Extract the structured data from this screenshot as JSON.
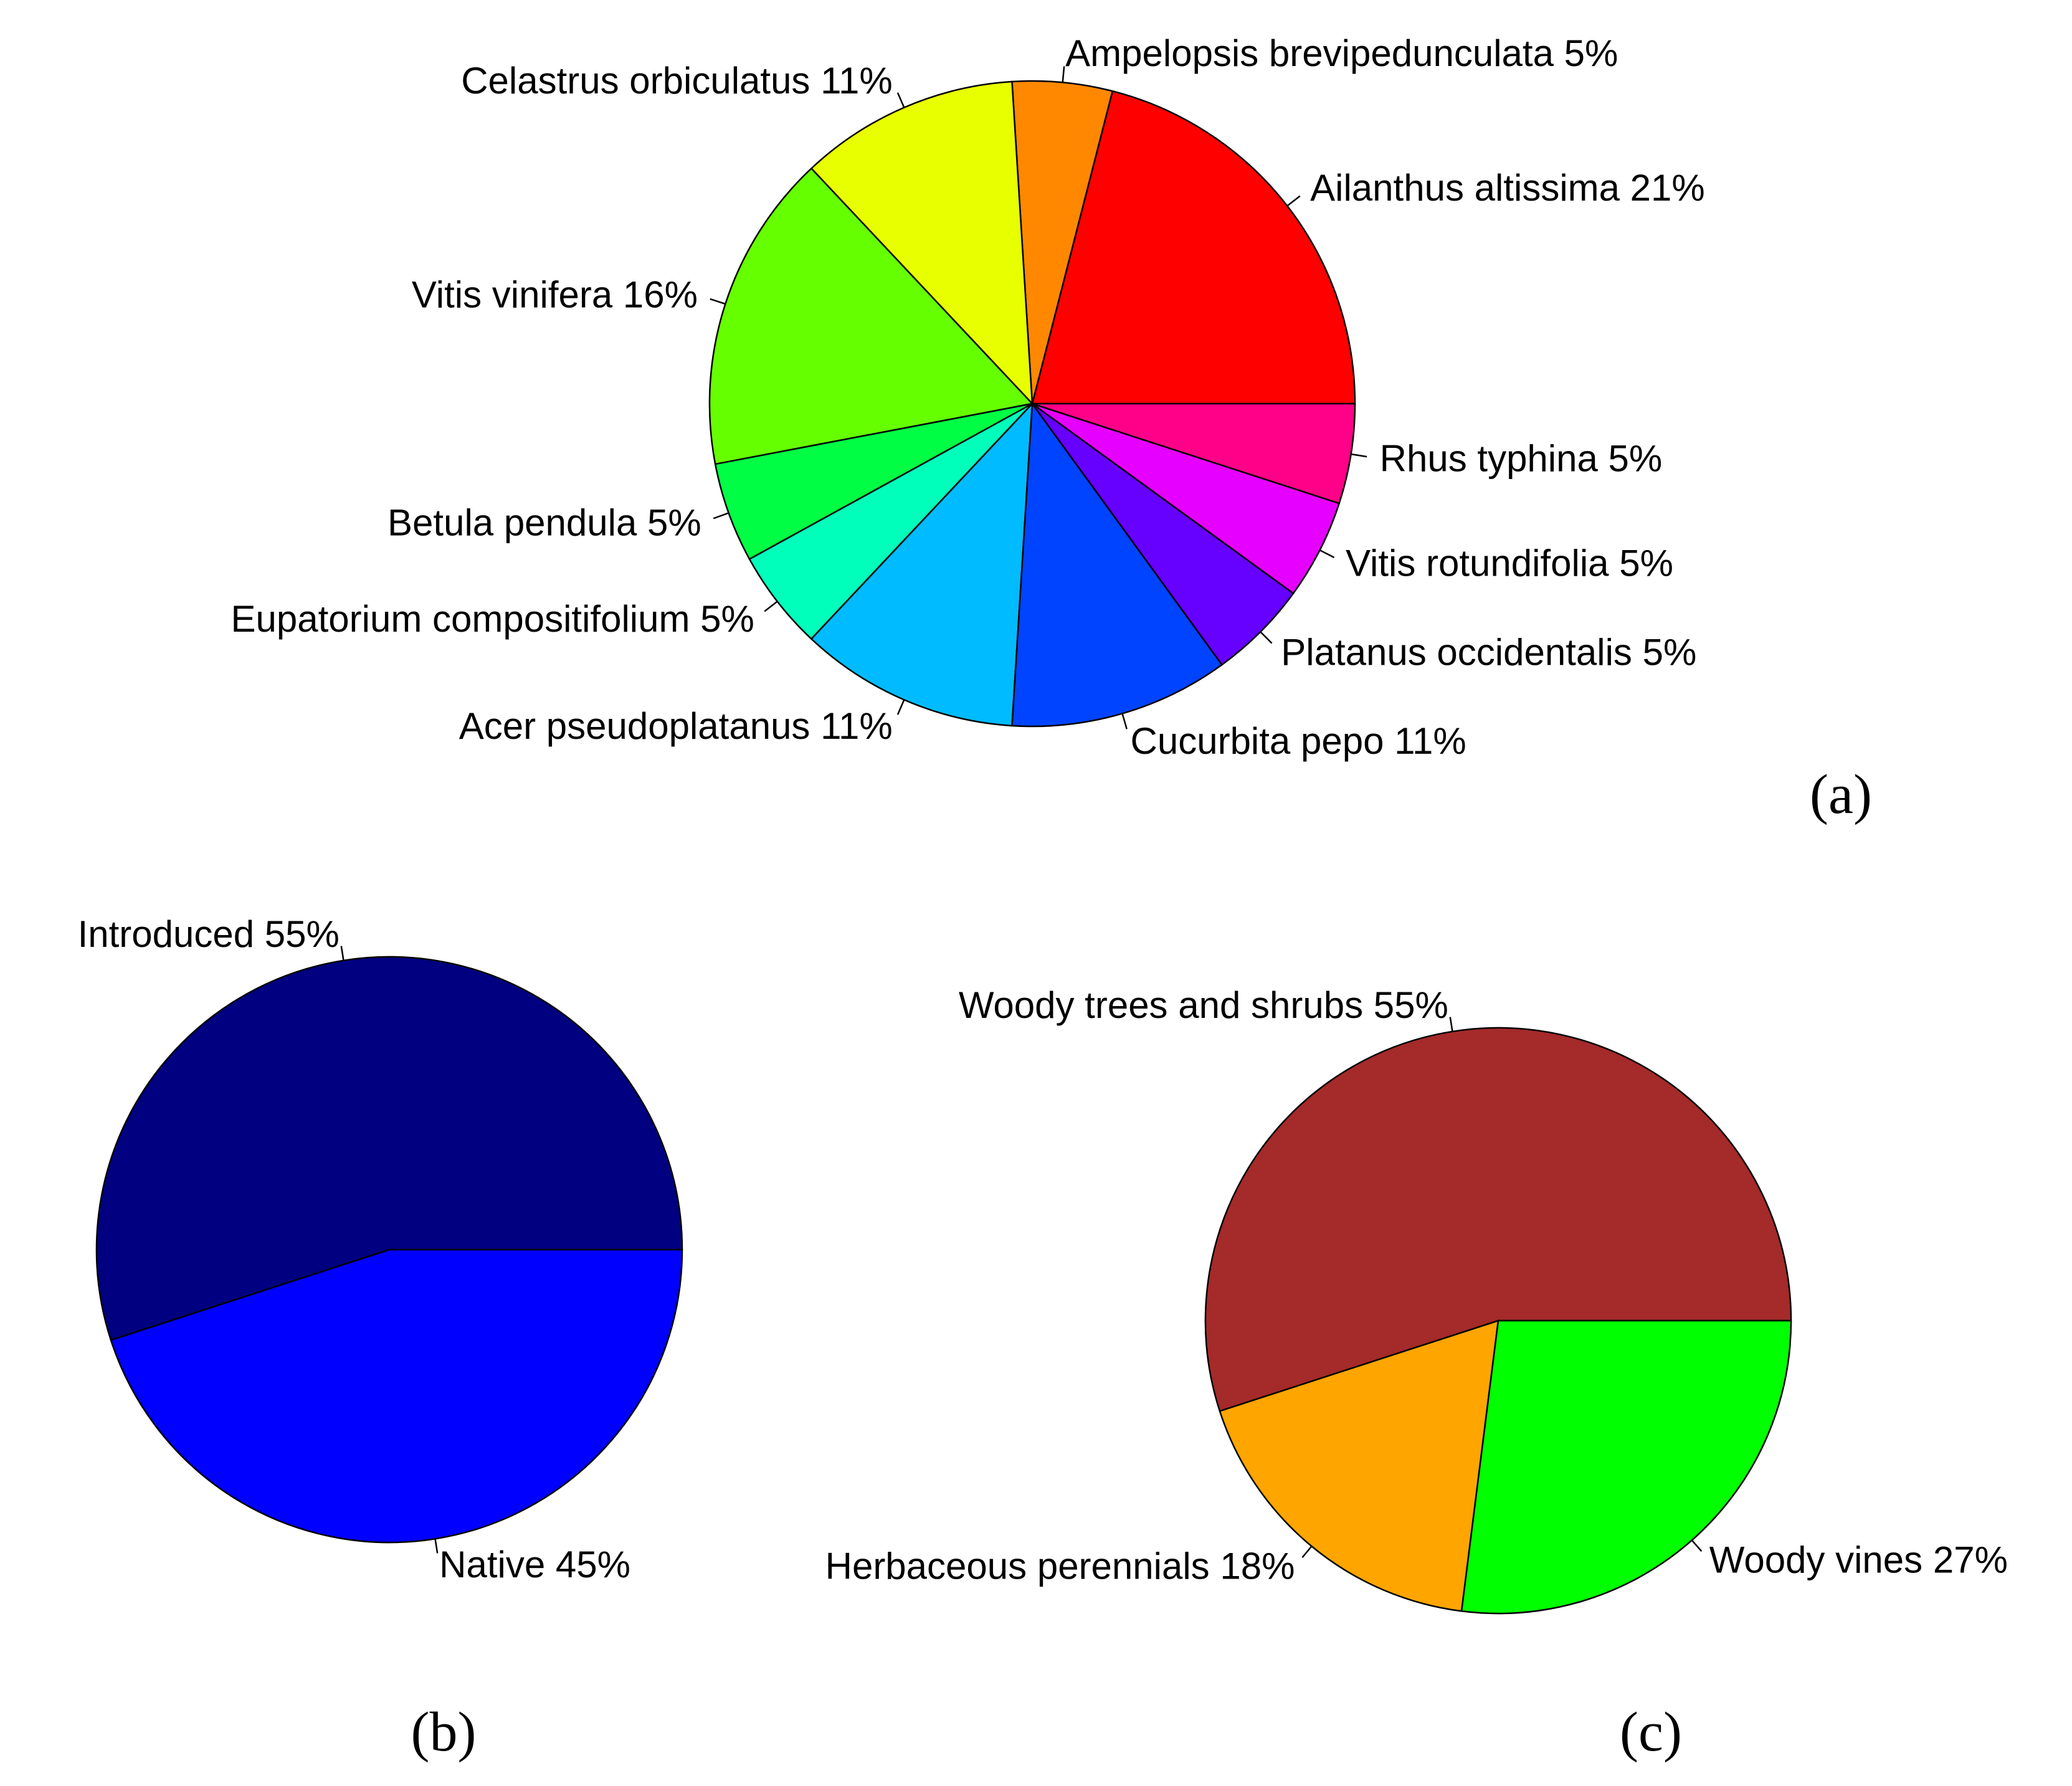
{
  "chart_data": [
    {
      "type": "pie",
      "panel_label": "(a)",
      "slices": [
        {
          "label": "Ailanthus altissima  21%",
          "value": 21,
          "color": "#FF0000"
        },
        {
          "label": "Ampelopsis brevipedunculata  5%",
          "value": 5,
          "color": "#FF8800"
        },
        {
          "label": "Celastrus orbiculatus  11%",
          "value": 11,
          "color": "#E8FF00"
        },
        {
          "label": "Vitis vinifera  16%",
          "value": 16,
          "color": "#66FF00"
        },
        {
          "label": "Betula pendula  5%",
          "value": 5,
          "color": "#00FF44"
        },
        {
          "label": "Eupatorium compositifolium  5%",
          "value": 5,
          "color": "#00FFBB"
        },
        {
          "label": "Acer pseudoplatanus  11%",
          "value": 11,
          "color": "#00BBFF"
        },
        {
          "label": "Cucurbita pepo  11%",
          "value": 11,
          "color": "#0044FF"
        },
        {
          "label": "Platanus occidentalis  5%",
          "value": 5,
          "color": "#6600FF"
        },
        {
          "label": "Vitis rotundifolia  5%",
          "value": 5,
          "color": "#E600FF"
        },
        {
          "label": "Rhus typhina  5%",
          "value": 5,
          "color": "#FF0088"
        }
      ]
    },
    {
      "type": "pie",
      "panel_label": "(b)",
      "slices": [
        {
          "label": "Introduced   55%",
          "value": 55,
          "color": "#000080"
        },
        {
          "label": "Native   45%",
          "value": 45,
          "color": "#0000FF"
        }
      ]
    },
    {
      "type": "pie",
      "panel_label": "(c)",
      "slices": [
        {
          "label": "Woody trees and shrubs   55%",
          "value": 55,
          "color": "#A52A2A"
        },
        {
          "label": "Herbaceous perennials   18%",
          "value": 18,
          "color": "#FFA500"
        },
        {
          "label": "Woody vines   27%",
          "value": 27,
          "color": "#00FF00"
        }
      ]
    }
  ]
}
